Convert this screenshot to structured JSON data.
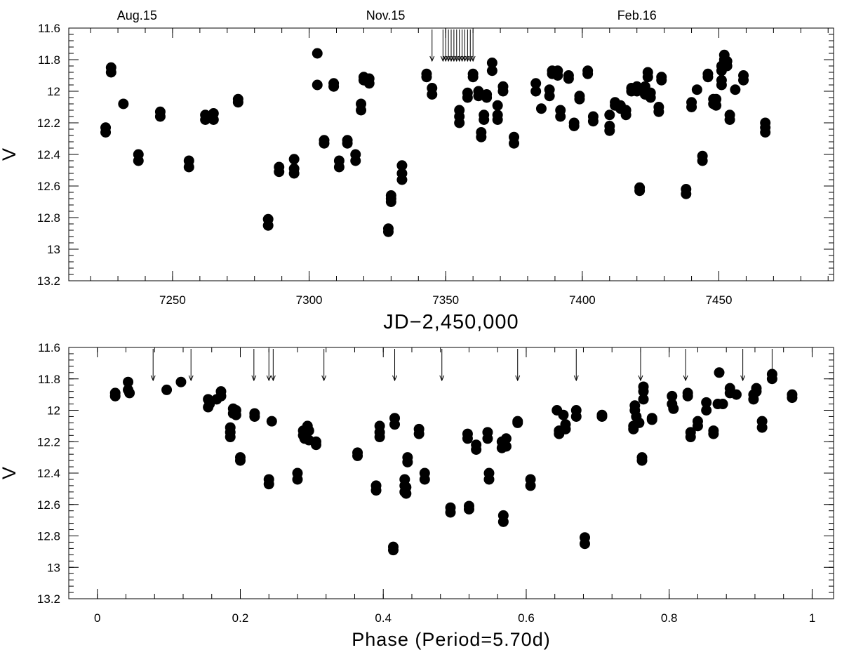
{
  "chart_data": [
    {
      "type": "scatter",
      "xlabel": "JD−2,450,000",
      "ylabel": "V",
      "xlim": [
        7212,
        7492
      ],
      "ylim": [
        13.2,
        11.6
      ],
      "y_inverted": true,
      "xticks": [
        7250,
        7300,
        7350,
        7400,
        7450
      ],
      "yticks": [
        11.6,
        11.8,
        12,
        12.2,
        12.4,
        12.6,
        12.8,
        13,
        13.2
      ],
      "top_labels": [
        {
          "text": "Aug.15",
          "x": 7237
        },
        {
          "text": "Nov.15",
          "x": 7328
        },
        {
          "text": "Feb.16",
          "x": 7420
        }
      ],
      "arrows_x": [
        7345,
        7349,
        7350,
        7351,
        7352,
        7353,
        7354,
        7355,
        7356,
        7357,
        7358,
        7359,
        7360
      ],
      "grid": false,
      "points": [
        [
          7225.5,
          12.23
        ],
        [
          7225.5,
          12.26
        ],
        [
          7227.5,
          11.85
        ],
        [
          7227.5,
          11.88
        ],
        [
          7232,
          12.08
        ],
        [
          7237.5,
          12.4
        ],
        [
          7237.5,
          12.44
        ],
        [
          7245.5,
          12.13
        ],
        [
          7245.5,
          12.16
        ],
        [
          7256,
          12.44
        ],
        [
          7256,
          12.48
        ],
        [
          7262,
          12.15
        ],
        [
          7262,
          12.18
        ],
        [
          7265,
          12.14
        ],
        [
          7265,
          12.18
        ],
        [
          7274,
          12.05
        ],
        [
          7274,
          12.07
        ],
        [
          7285,
          12.81
        ],
        [
          7285,
          12.85
        ],
        [
          7289,
          12.48
        ],
        [
          7289,
          12.51
        ],
        [
          7294.5,
          12.43
        ],
        [
          7294.5,
          12.52
        ],
        [
          7294.5,
          12.49
        ],
        [
          7303,
          11.76
        ],
        [
          7303,
          11.96
        ],
        [
          7305.5,
          12.31
        ],
        [
          7305.5,
          12.33
        ],
        [
          7309,
          11.95
        ],
        [
          7309,
          11.97
        ],
        [
          7311,
          12.44
        ],
        [
          7311,
          12.48
        ],
        [
          7314,
          12.31
        ],
        [
          7314,
          12.33
        ],
        [
          7317,
          12.4
        ],
        [
          7317,
          12.44
        ],
        [
          7319,
          12.08
        ],
        [
          7319,
          12.12
        ],
        [
          7320,
          11.91
        ],
        [
          7320,
          11.93
        ],
        [
          7322,
          11.92
        ],
        [
          7322,
          11.95
        ],
        [
          7329,
          12.87
        ],
        [
          7329,
          12.89
        ],
        [
          7330,
          12.66
        ],
        [
          7330,
          12.7
        ],
        [
          7330,
          12.68
        ],
        [
          7334,
          12.47
        ],
        [
          7334,
          12.52
        ],
        [
          7334,
          12.56
        ],
        [
          7343,
          11.89
        ],
        [
          7343,
          11.91
        ],
        [
          7345,
          11.98
        ],
        [
          7345,
          12.02
        ],
        [
          7355,
          12.12
        ],
        [
          7355,
          12.16
        ],
        [
          7355,
          12.2
        ],
        [
          7358,
          12.01
        ],
        [
          7358,
          12.04
        ],
        [
          7360,
          11.89
        ],
        [
          7360,
          11.91
        ],
        [
          7362,
          12.0
        ],
        [
          7362,
          12.03
        ],
        [
          7363,
          12.26
        ],
        [
          7363,
          12.29
        ],
        [
          7364,
          12.15
        ],
        [
          7364,
          12.18
        ],
        [
          7365,
          12.02
        ],
        [
          7365,
          12.04
        ],
        [
          7367,
          11.82
        ],
        [
          7367,
          11.87
        ],
        [
          7369,
          12.09
        ],
        [
          7369,
          12.15
        ],
        [
          7369,
          12.18
        ],
        [
          7371,
          11.97
        ],
        [
          7371,
          12.0
        ],
        [
          7375,
          12.29
        ],
        [
          7375,
          12.33
        ],
        [
          7383,
          11.95
        ],
        [
          7383,
          12.0
        ],
        [
          7385,
          12.11
        ],
        [
          7388,
          11.99
        ],
        [
          7388,
          12.03
        ],
        [
          7389,
          11.87
        ],
        [
          7389,
          11.89
        ],
        [
          7391,
          11.87
        ],
        [
          7391,
          11.9
        ],
        [
          7392,
          12.12
        ],
        [
          7392,
          12.16
        ],
        [
          7395,
          11.9
        ],
        [
          7395,
          11.92
        ],
        [
          7397,
          12.2
        ],
        [
          7397,
          12.22
        ],
        [
          7399,
          12.03
        ],
        [
          7399,
          12.05
        ],
        [
          7402,
          11.87
        ],
        [
          7402,
          11.89
        ],
        [
          7404,
          12.16
        ],
        [
          7404,
          12.19
        ],
        [
          7410,
          12.15
        ],
        [
          7410,
          12.22
        ],
        [
          7410,
          12.25
        ],
        [
          7412,
          12.07
        ],
        [
          7412,
          12.09
        ],
        [
          7414,
          12.09
        ],
        [
          7414,
          12.11
        ],
        [
          7416,
          12.12
        ],
        [
          7416,
          12.15
        ],
        [
          7418,
          11.98
        ],
        [
          7418,
          12.0
        ],
        [
          7420,
          11.97
        ],
        [
          7420,
          12.0
        ],
        [
          7421,
          12.61
        ],
        [
          7421,
          12.63
        ],
        [
          7423,
          11.97
        ],
        [
          7423,
          12.02
        ],
        [
          7424,
          11.88
        ],
        [
          7424,
          11.91
        ],
        [
          7425,
          12.01
        ],
        [
          7425,
          12.04
        ],
        [
          7428,
          12.1
        ],
        [
          7428,
          12.13
        ],
        [
          7429,
          11.91
        ],
        [
          7429,
          11.93
        ],
        [
          7438,
          12.62
        ],
        [
          7438,
          12.65
        ],
        [
          7440,
          12.07
        ],
        [
          7440,
          12.1
        ],
        [
          7442,
          11.99
        ],
        [
          7444,
          12.41
        ],
        [
          7444,
          12.44
        ],
        [
          7446,
          11.89
        ],
        [
          7446,
          11.91
        ],
        [
          7448,
          12.05
        ],
        [
          7448,
          12.08
        ],
        [
          7449,
          12.05
        ],
        [
          7449,
          12.09
        ],
        [
          7451,
          11.93
        ],
        [
          7451,
          11.96
        ],
        [
          7451,
          11.84
        ],
        [
          7451,
          11.87
        ],
        [
          7452,
          11.77
        ],
        [
          7452,
          11.8
        ],
        [
          7453,
          11.81
        ],
        [
          7453,
          11.84
        ],
        [
          7454,
          12.15
        ],
        [
          7454,
          12.18
        ],
        [
          7456,
          11.99
        ],
        [
          7459,
          11.9
        ],
        [
          7459,
          11.93
        ],
        [
          7467,
          12.2
        ],
        [
          7467,
          12.23
        ],
        [
          7467,
          12.26
        ]
      ]
    },
    {
      "type": "scatter",
      "xlabel": "Phase (Period=5.70d)",
      "ylabel": "V",
      "xlim": [
        -0.04,
        1.03
      ],
      "ylim": [
        13.2,
        11.6
      ],
      "y_inverted": true,
      "xticks": [
        0,
        0.2,
        0.4,
        0.6,
        0.8,
        1
      ],
      "yticks": [
        11.6,
        11.8,
        12,
        12.2,
        12.4,
        12.6,
        12.8,
        13,
        13.2
      ],
      "arrows_x": [
        0.078,
        0.131,
        0.219,
        0.24,
        0.246,
        0.317,
        0.416,
        0.482,
        0.588,
        0.67,
        0.76,
        0.823,
        0.903,
        0.944
      ],
      "grid": false,
      "points": [
        [
          0.025,
          11.89
        ],
        [
          0.025,
          11.91
        ],
        [
          0.043,
          11.82
        ],
        [
          0.043,
          11.87
        ],
        [
          0.045,
          11.89
        ],
        [
          0.097,
          11.87
        ],
        [
          0.117,
          11.82
        ],
        [
          0.155,
          11.93
        ],
        [
          0.155,
          11.98
        ],
        [
          0.157,
          11.96
        ],
        [
          0.167,
          11.93
        ],
        [
          0.173,
          11.88
        ],
        [
          0.173,
          11.91
        ],
        [
          0.186,
          12.11
        ],
        [
          0.186,
          12.14
        ],
        [
          0.186,
          12.17
        ],
        [
          0.19,
          11.99
        ],
        [
          0.19,
          12.02
        ],
        [
          0.194,
          12.0
        ],
        [
          0.194,
          12.03
        ],
        [
          0.2,
          12.3
        ],
        [
          0.2,
          12.32
        ],
        [
          0.22,
          12.02
        ],
        [
          0.22,
          12.04
        ],
        [
          0.24,
          12.44
        ],
        [
          0.24,
          12.47
        ],
        [
          0.244,
          12.07
        ],
        [
          0.28,
          12.4
        ],
        [
          0.28,
          12.44
        ],
        [
          0.288,
          12.13
        ],
        [
          0.288,
          12.16
        ],
        [
          0.29,
          12.18
        ],
        [
          0.294,
          12.1
        ],
        [
          0.296,
          12.13
        ],
        [
          0.296,
          12.19
        ],
        [
          0.306,
          12.2
        ],
        [
          0.306,
          12.22
        ],
        [
          0.364,
          12.27
        ],
        [
          0.364,
          12.29
        ],
        [
          0.39,
          12.48
        ],
        [
          0.39,
          12.51
        ],
        [
          0.395,
          12.1
        ],
        [
          0.395,
          12.14
        ],
        [
          0.395,
          12.17
        ],
        [
          0.414,
          12.87
        ],
        [
          0.414,
          12.89
        ],
        [
          0.416,
          12.05
        ],
        [
          0.416,
          12.09
        ],
        [
          0.43,
          12.44
        ],
        [
          0.43,
          12.48
        ],
        [
          0.43,
          12.52
        ],
        [
          0.432,
          12.49
        ],
        [
          0.432,
          12.53
        ],
        [
          0.434,
          12.3
        ],
        [
          0.434,
          12.33
        ],
        [
          0.45,
          12.12
        ],
        [
          0.45,
          12.15
        ],
        [
          0.458,
          12.4
        ],
        [
          0.458,
          12.44
        ],
        [
          0.494,
          12.62
        ],
        [
          0.494,
          12.65
        ],
        [
          0.518,
          12.15
        ],
        [
          0.518,
          12.18
        ],
        [
          0.52,
          12.61
        ],
        [
          0.52,
          12.63
        ],
        [
          0.53,
          12.22
        ],
        [
          0.53,
          12.25
        ],
        [
          0.546,
          12.14
        ],
        [
          0.546,
          12.18
        ],
        [
          0.548,
          12.4
        ],
        [
          0.548,
          12.44
        ],
        [
          0.566,
          12.2
        ],
        [
          0.566,
          12.24
        ],
        [
          0.568,
          12.67
        ],
        [
          0.568,
          12.71
        ],
        [
          0.572,
          12.23
        ],
        [
          0.572,
          12.18
        ],
        [
          0.588,
          12.07
        ],
        [
          0.588,
          12.08
        ],
        [
          0.606,
          12.44
        ],
        [
          0.606,
          12.48
        ],
        [
          0.643,
          12.0
        ],
        [
          0.646,
          12.13
        ],
        [
          0.646,
          12.15
        ],
        [
          0.652,
          12.03
        ],
        [
          0.655,
          12.09
        ],
        [
          0.655,
          12.12
        ],
        [
          0.67,
          12.0
        ],
        [
          0.67,
          12.04
        ],
        [
          0.682,
          12.81
        ],
        [
          0.682,
          12.85
        ],
        [
          0.706,
          12.03
        ],
        [
          0.706,
          12.04
        ],
        [
          0.75,
          12.1
        ],
        [
          0.75,
          12.12
        ],
        [
          0.752,
          11.97
        ],
        [
          0.752,
          12.0
        ],
        [
          0.754,
          12.04
        ],
        [
          0.758,
          12.08
        ],
        [
          0.762,
          12.3
        ],
        [
          0.762,
          12.32
        ],
        [
          0.764,
          11.85
        ],
        [
          0.764,
          11.88
        ],
        [
          0.764,
          11.93
        ],
        [
          0.776,
          12.05
        ],
        [
          0.776,
          12.06
        ],
        [
          0.804,
          11.91
        ],
        [
          0.804,
          11.96
        ],
        [
          0.806,
          11.99
        ],
        [
          0.826,
          11.89
        ],
        [
          0.826,
          11.91
        ],
        [
          0.83,
          12.14
        ],
        [
          0.83,
          12.17
        ],
        [
          0.84,
          12.07
        ],
        [
          0.84,
          12.1
        ],
        [
          0.852,
          11.95
        ],
        [
          0.852,
          12.0
        ],
        [
          0.862,
          12.13
        ],
        [
          0.862,
          12.15
        ],
        [
          0.868,
          11.96
        ],
        [
          0.87,
          11.76
        ],
        [
          0.875,
          11.96
        ],
        [
          0.885,
          11.86
        ],
        [
          0.885,
          11.89
        ],
        [
          0.894,
          11.9
        ],
        [
          0.918,
          11.9
        ],
        [
          0.918,
          11.93
        ],
        [
          0.922,
          11.86
        ],
        [
          0.922,
          11.88
        ],
        [
          0.93,
          12.07
        ],
        [
          0.93,
          12.11
        ],
        [
          0.944,
          11.77
        ],
        [
          0.944,
          11.8
        ],
        [
          0.972,
          11.9
        ],
        [
          0.972,
          11.92
        ]
      ]
    }
  ]
}
